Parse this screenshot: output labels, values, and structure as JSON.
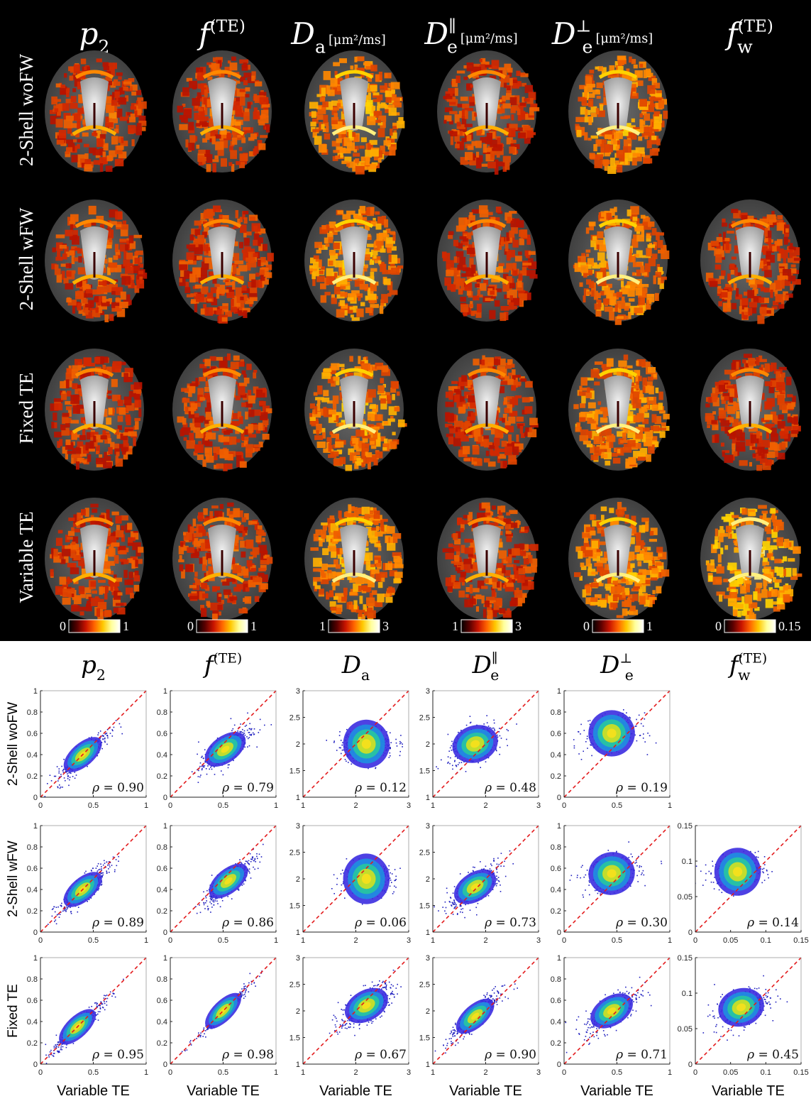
{
  "brain_maps": {
    "columns": [
      {
        "symbol": "p",
        "sub": "2",
        "sup": "",
        "unit": ""
      },
      {
        "symbol": "f",
        "sub": "",
        "sup": "(TE)",
        "unit": ""
      },
      {
        "symbol": "D",
        "sub": "a",
        "sup": "",
        "unit": "[μm²/ms]"
      },
      {
        "symbol": "D",
        "sub": "e",
        "sup": "∥",
        "unit": "[μm²/ms]"
      },
      {
        "symbol": "D",
        "sub": "e",
        "sup": "⊥",
        "unit": "[μm²/ms]"
      },
      {
        "symbol": "f",
        "sub": "w",
        "sup": "(TE)",
        "unit": ""
      }
    ],
    "rows": [
      "2-Shell woFW",
      "2-Shell wFW",
      "Fixed TE",
      "Variable TE"
    ],
    "missing_cells": [
      [
        0,
        5
      ]
    ],
    "colorbars": [
      {
        "min": "0",
        "max": "1"
      },
      {
        "min": "0",
        "max": "1"
      },
      {
        "min": "1",
        "max": "3"
      },
      {
        "min": "1",
        "max": "3"
      },
      {
        "min": "0",
        "max": "1"
      },
      {
        "min": "0",
        "max": "0.15"
      }
    ],
    "colormap": [
      "#000000",
      "#5a0000",
      "#c81400",
      "#ff6400",
      "#ffc800",
      "#ffff9b",
      "#ffffff"
    ]
  },
  "scatter": {
    "columns": [
      {
        "symbol": "p",
        "sub": "2",
        "sup": ""
      },
      {
        "symbol": "f",
        "sub": "",
        "sup": "(TE)"
      },
      {
        "symbol": "D",
        "sub": "a",
        "sup": ""
      },
      {
        "symbol": "D",
        "sub": "e",
        "sup": "∥"
      },
      {
        "symbol": "D",
        "sub": "e",
        "sup": "⊥"
      },
      {
        "symbol": "f",
        "sub": "w",
        "sup": "(TE)"
      }
    ],
    "rows": [
      "2-Shell woFW",
      "2-Shell wFW",
      "Fixed TE"
    ],
    "xlabel": "Variable TE",
    "rho_symbol": "ρ",
    "axes": [
      {
        "lim": [
          0,
          1
        ],
        "yticks": [
          "0",
          "0.2",
          "0.4",
          "0.6",
          "0.8",
          "1"
        ],
        "xticks": [
          "0",
          "0.5",
          "1"
        ]
      },
      {
        "lim": [
          0,
          1
        ],
        "yticks": [
          "0",
          "0.2",
          "0.4",
          "0.6",
          "0.8",
          "1"
        ],
        "xticks": [
          "0",
          "0.5",
          "1"
        ]
      },
      {
        "lim": [
          1,
          3
        ],
        "yticks": [
          "1",
          "1.5",
          "2",
          "2.5",
          "3"
        ],
        "xticks": [
          "1",
          "2",
          "3"
        ]
      },
      {
        "lim": [
          1,
          3
        ],
        "yticks": [
          "1",
          "1.5",
          "2",
          "2.5",
          "3"
        ],
        "xticks": [
          "1",
          "2",
          "3"
        ]
      },
      {
        "lim": [
          0,
          1
        ],
        "yticks": [
          "0",
          "0.2",
          "0.4",
          "0.6",
          "0.8",
          "1"
        ],
        "xticks": [
          "0",
          "0.5",
          "1"
        ]
      },
      {
        "lim": [
          0,
          0.15
        ],
        "yticks": [
          "0",
          "0.05",
          "0.1",
          "0.15"
        ],
        "xticks": [
          "0",
          "0.05",
          "0.1",
          "0.15"
        ]
      }
    ],
    "rho": [
      [
        "0.90",
        "0.79",
        "0.12",
        "0.48",
        "0.19",
        null
      ],
      [
        "0.89",
        "0.86",
        "0.06",
        "0.73",
        "0.30",
        "0.14"
      ],
      [
        "0.95",
        "0.98",
        "0.67",
        "0.90",
        "0.71",
        "0.45"
      ]
    ],
    "cloud_centers": [
      [
        [
          0.4,
          0.4
        ],
        [
          0.52,
          0.45
        ],
        [
          2.2,
          2.0
        ],
        [
          1.8,
          2.0
        ],
        [
          0.45,
          0.6
        ],
        null
      ],
      [
        [
          0.4,
          0.4
        ],
        [
          0.55,
          0.48
        ],
        [
          2.2,
          2.0
        ],
        [
          1.8,
          1.85
        ],
        [
          0.45,
          0.55
        ],
        [
          0.06,
          0.085
        ]
      ],
      [
        [
          0.35,
          0.35
        ],
        [
          0.5,
          0.5
        ],
        [
          2.2,
          2.1
        ],
        [
          1.8,
          1.9
        ],
        [
          0.45,
          0.5
        ],
        [
          0.065,
          0.08
        ]
      ]
    ],
    "diagonal_color": "#e31a1c",
    "point_color": "#1f1fbf",
    "density_colors": [
      "#3b2ce0",
      "#1f8fe0",
      "#28c7a0",
      "#d4e020",
      "#f8e01c"
    ]
  }
}
